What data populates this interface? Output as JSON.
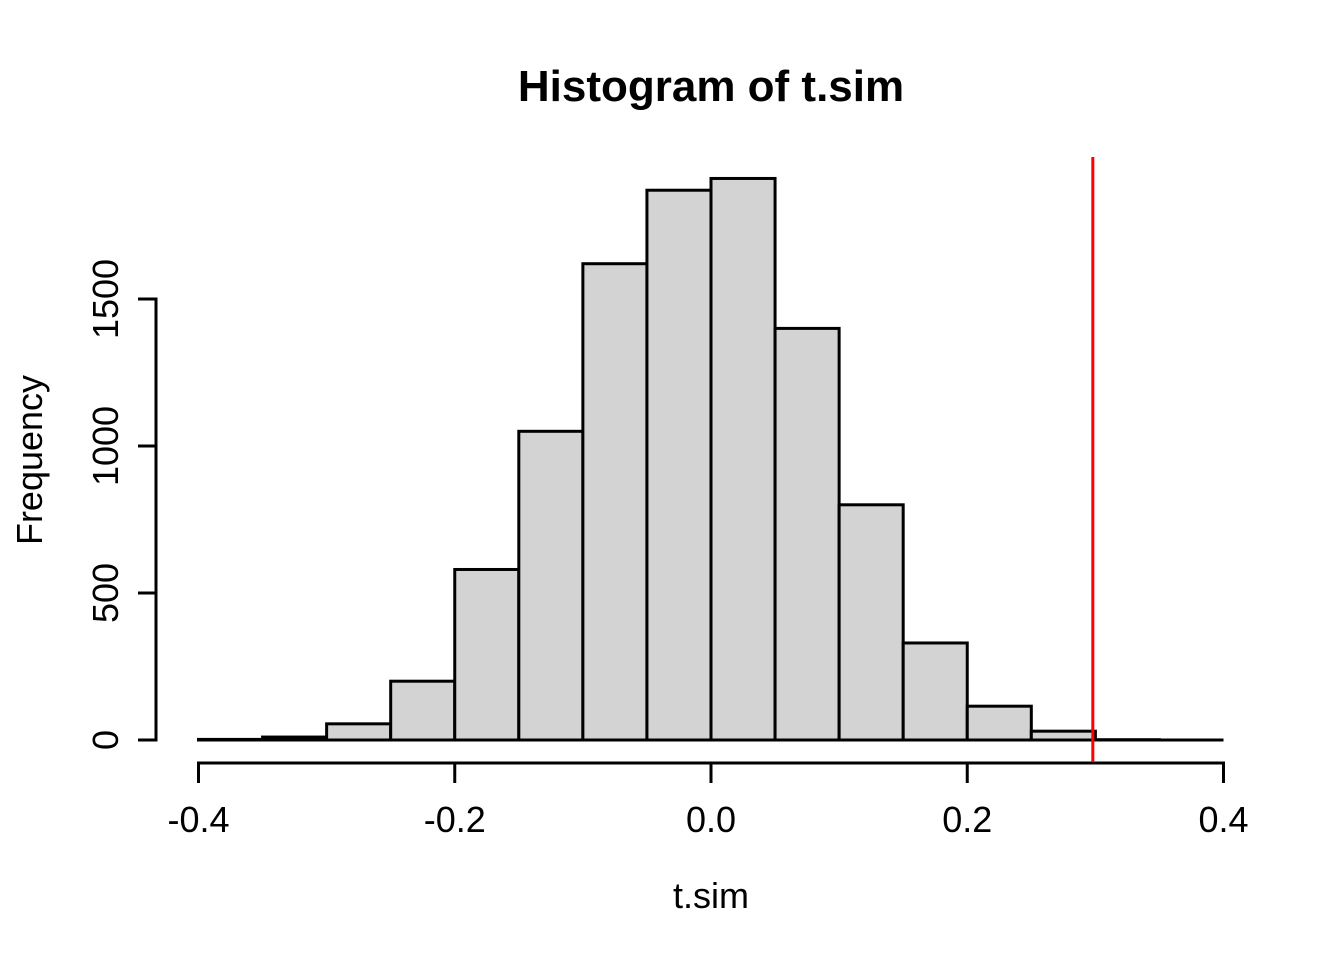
{
  "figure": {
    "kind": "R base-graphics histogram plot",
    "background": "#ffffff"
  },
  "chart_data": {
    "type": "bar",
    "subtype": "histogram",
    "title": "Histogram of t.sim",
    "xlabel": "t.sim",
    "ylabel": "Frequency",
    "bin_edges": [
      -0.4,
      -0.35,
      -0.3,
      -0.25,
      -0.2,
      -0.15,
      -0.1,
      -0.05,
      0.0,
      0.05,
      0.1,
      0.15,
      0.2,
      0.25,
      0.3,
      0.35,
      0.4
    ],
    "counts": [
      2,
      10,
      55,
      200,
      580,
      1050,
      1620,
      1870,
      1910,
      1400,
      800,
      330,
      115,
      30,
      1,
      0
    ],
    "xlim": [
      -0.4,
      0.4
    ],
    "ylim": [
      0,
      1910
    ],
    "x_ticks": [
      -0.4,
      -0.2,
      0.0,
      0.2,
      0.4
    ],
    "x_tick_labels": [
      "-0.4",
      "-0.2",
      "0.0",
      "0.2",
      "0.4"
    ],
    "y_ticks": [
      0,
      500,
      1000,
      1500
    ],
    "y_tick_labels": [
      "0",
      "500",
      "1000",
      "1500"
    ],
    "grid": false,
    "legend": null,
    "bar_fill": "#d3d3d3",
    "bar_stroke": "#000000",
    "axis_color": "#000000",
    "vline": {
      "x": 0.298,
      "color": "#ff0000",
      "meaning": "observed-statistic-line"
    }
  }
}
